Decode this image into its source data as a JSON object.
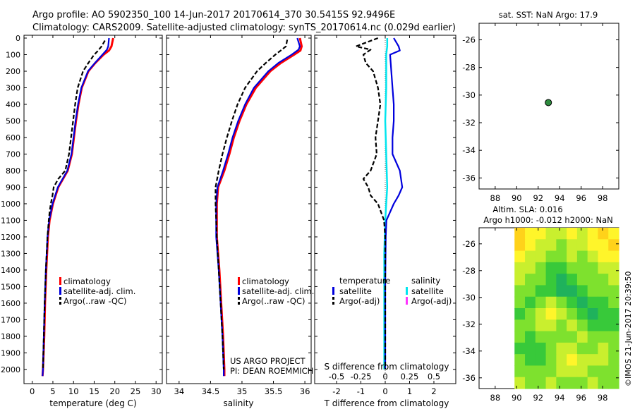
{
  "header": {
    "line1": "Argo profile: AO 5902350_100 14-Jun-2017 20170614_370 30.5415S 92.9496E",
    "line2": "Climatology: CARS2009. Satellite-adjusted climatology: synTS_20170614.nc (0.029d earlier)"
  },
  "colors": {
    "climatology": "#ff0000",
    "satellite": "#0000dd",
    "argo": "#000000",
    "salinity_satellite": "#00e5ee",
    "salinity_argo": "#ff33ff",
    "marker": "#2e8b3e"
  },
  "chart_data": [
    {
      "id": "temperature-profile",
      "type": "line",
      "xlabel": "temperature (deg C)",
      "ylabel": "",
      "xlim": [
        -2,
        31.5
      ],
      "ylim": [
        2060,
        0
      ],
      "xticks": [
        0,
        5,
        10,
        15,
        20,
        25,
        30
      ],
      "yticks": [
        0,
        100,
        200,
        300,
        400,
        500,
        600,
        700,
        800,
        900,
        1000,
        1100,
        1200,
        1300,
        1400,
        1500,
        1600,
        1700,
        1800,
        1900,
        2000
      ],
      "legend": [
        "climatology",
        "satellite-adj. clim.",
        "Argo(..raw -QC)"
      ],
      "legend_position": "lower-left",
      "series": [
        {
          "name": "climatology",
          "style": "solid",
          "depth": [
            0,
            50,
            75,
            100,
            150,
            200,
            300,
            400,
            500,
            600,
            700,
            800,
            900,
            1000,
            1100,
            1200,
            1400,
            1600,
            1800,
            2000,
            2040
          ],
          "values": [
            19.6,
            19.2,
            18.6,
            17.3,
            15.3,
            13.6,
            12.0,
            11.2,
            10.6,
            10.1,
            9.6,
            8.6,
            6.3,
            5.0,
            4.2,
            3.8,
            3.4,
            3.1,
            2.9,
            2.6,
            2.5
          ]
        },
        {
          "name": "satellite-adj. clim.",
          "style": "solid",
          "depth": [
            0,
            50,
            70,
            100,
            150,
            200,
            300,
            400,
            500,
            600,
            700,
            800,
            900,
            1000,
            1100,
            1200,
            1400,
            1600,
            1800,
            2000,
            2040
          ],
          "values": [
            18.6,
            18.4,
            18.1,
            17.0,
            15.2,
            13.5,
            11.9,
            11.1,
            10.5,
            10.0,
            9.5,
            8.5,
            6.2,
            4.9,
            4.1,
            3.7,
            3.3,
            3.0,
            2.8,
            2.6,
            2.5
          ]
        },
        {
          "name": "Argo(..raw -QC)",
          "style": "dashed",
          "depth": [
            15,
            50,
            80,
            100,
            150,
            200,
            300,
            400,
            500,
            600,
            700,
            800,
            850,
            900,
            950,
            1000,
            1050,
            1100,
            1200,
            1400,
            1600,
            1800,
            2000
          ],
          "values": [
            17.6,
            16.8,
            15.8,
            15.0,
            13.6,
            12.3,
            11.0,
            10.4,
            9.9,
            9.4,
            8.9,
            8.0,
            6.3,
            5.2,
            4.9,
            4.5,
            4.2,
            4.0,
            3.7,
            3.3,
            3.0,
            2.8,
            2.6
          ]
        }
      ]
    },
    {
      "id": "salinity-profile",
      "type": "line",
      "xlabel": "salinity",
      "xlim": [
        33.8,
        36.1
      ],
      "ylim": [
        2060,
        0
      ],
      "xticks": [
        34,
        34.5,
        35,
        35.5,
        36
      ],
      "xticklabels": [
        "34",
        "34.5",
        "35",
        "35.5",
        "36"
      ],
      "legend": [
        "climatology",
        "satellite-adj. clim.",
        "Argo(..raw -QC)"
      ],
      "legend_position": "lower-left",
      "annotation": [
        "US ARGO PROJECT",
        "PI: DEAN ROEMMICH"
      ],
      "series": [
        {
          "name": "climatology",
          "style": "solid",
          "depth": [
            0,
            50,
            75,
            100,
            150,
            200,
            300,
            400,
            500,
            600,
            700,
            800,
            900,
            1000,
            1200,
            1400,
            1600,
            1800,
            2000,
            2040
          ],
          "values": [
            35.92,
            35.95,
            35.93,
            35.83,
            35.62,
            35.45,
            35.22,
            35.07,
            34.96,
            34.87,
            34.8,
            34.72,
            34.62,
            34.6,
            34.6,
            34.64,
            34.67,
            34.7,
            34.72,
            34.72
          ]
        },
        {
          "name": "satellite-adj. clim.",
          "style": "solid",
          "depth": [
            0,
            50,
            70,
            100,
            150,
            200,
            300,
            400,
            500,
            600,
            700,
            800,
            900,
            1000,
            1200,
            1400,
            1600,
            1800,
            2000,
            2040
          ],
          "values": [
            35.88,
            35.92,
            35.9,
            35.79,
            35.58,
            35.42,
            35.19,
            35.05,
            34.94,
            34.85,
            34.78,
            34.7,
            34.61,
            34.59,
            34.59,
            34.63,
            34.66,
            34.69,
            34.71,
            34.71
          ]
        },
        {
          "name": "Argo(..raw -QC)",
          "style": "dashed",
          "depth": [
            10,
            50,
            80,
            100,
            150,
            200,
            300,
            400,
            500,
            600,
            700,
            800,
            900,
            1000,
            1200,
            1400,
            1600,
            1800,
            2000
          ],
          "values": [
            35.72,
            35.7,
            35.6,
            35.53,
            35.38,
            35.24,
            35.05,
            34.93,
            34.84,
            34.76,
            34.69,
            34.63,
            34.58,
            34.58,
            34.6,
            34.63,
            34.66,
            34.69,
            34.71
          ]
        }
      ]
    },
    {
      "id": "difference-profile",
      "type": "line",
      "xlabel": "T difference from climatology",
      "top_xlabel": "S difference from climatology",
      "xlim": [
        -2.9,
        2.9
      ],
      "ylim": [
        2060,
        0
      ],
      "xticks": [
        -2,
        -1,
        0,
        1,
        2
      ],
      "xticklabels": [
        "-2",
        "-1",
        "0",
        "1",
        "2"
      ],
      "top_xticks": [
        -0.5,
        -0.25,
        0,
        0.25,
        0.5
      ],
      "top_xticklabels": [
        "-0.5",
        "-0.25",
        "0",
        "0.25",
        "0.5"
      ],
      "legend_temperature": {
        "title": "temperature",
        "items": [
          "satellite",
          "Argo(-adj)"
        ]
      },
      "legend_salinity": {
        "title": "salinity",
        "items": [
          "satellite",
          "Argo(-adj)"
        ]
      },
      "series": [
        {
          "name": "temperature satellite",
          "style": "solid",
          "depth": [
            0,
            50,
            75,
            100,
            200,
            300,
            400,
            500,
            600,
            700,
            800,
            850,
            900,
            950,
            1000,
            1050,
            1100,
            1200,
            1500,
            2000
          ],
          "values": [
            0.35,
            0.55,
            0.6,
            0.2,
            0.25,
            0.3,
            0.35,
            0.35,
            0.3,
            0.3,
            0.6,
            0.65,
            0.7,
            0.55,
            0.35,
            0.2,
            0.05,
            0.02,
            0.0,
            0.0
          ]
        },
        {
          "name": "temperature Argo(-adj)",
          "style": "dashed",
          "depth": [
            0,
            50,
            70,
            100,
            150,
            200,
            300,
            400,
            500,
            600,
            700,
            800,
            850,
            900,
            950,
            1000,
            1100,
            1200,
            1500,
            2000
          ],
          "values": [
            -0.3,
            -1.2,
            -0.6,
            -0.9,
            -0.8,
            -0.5,
            -0.3,
            -0.2,
            -0.3,
            -0.4,
            -0.35,
            -0.6,
            -0.9,
            -0.7,
            -0.6,
            -0.3,
            -0.05,
            0.0,
            0.0,
            0.0
          ]
        },
        {
          "name": "salinity satellite",
          "style": "solid",
          "depth": [
            0,
            50,
            100,
            300,
            500,
            700,
            900,
            1100,
            1300,
            1600,
            2000
          ],
          "values": [
            0.02,
            0.02,
            0.01,
            0.01,
            0.0,
            0.01,
            0.02,
            0.0,
            -0.01,
            -0.01,
            -0.01
          ]
        },
        {
          "name": "salinity Argo(-adj)",
          "style": "solid",
          "depth": [],
          "values": []
        }
      ]
    },
    {
      "id": "position-map",
      "type": "scatter",
      "title": "sat. SST: NaN  Argo: 17.9",
      "xlim": [
        86.5,
        99.5
      ],
      "ylim": [
        -36.8,
        -24.8
      ],
      "xticks": [
        88,
        90,
        92,
        94,
        96,
        98
      ],
      "yticks": [
        -26,
        -28,
        -30,
        -32,
        -34,
        -36
      ],
      "points": [
        {
          "x": 92.9496,
          "y": -30.5415
        }
      ]
    },
    {
      "id": "altimetry-map",
      "type": "heatmap",
      "title_lines": [
        "Altim. SLA: 0.016",
        "Argo h1000: -0.012  h2000: NaN"
      ],
      "xlim": [
        86.5,
        99.5
      ],
      "ylim": [
        -36.8,
        -24.8
      ],
      "data_xlim": [
        89.8,
        99.5
      ],
      "xticks": [
        88,
        90,
        92,
        94,
        96,
        98
      ],
      "yticks": [
        -26,
        -28,
        -30,
        -32,
        -34,
        -36
      ],
      "colormap": [
        "#ffa41c",
        "#ffd21a",
        "#fff52a",
        "#c9ef2e",
        "#7ee12e",
        "#38c93a",
        "#1fb25c"
      ],
      "grid_cols": 10,
      "grid_rows": 14,
      "grid": [
        [
          1,
          2,
          2,
          3,
          3,
          2,
          3,
          2,
          1,
          2
        ],
        [
          1,
          2,
          3,
          3,
          4,
          3,
          3,
          2,
          2,
          1
        ],
        [
          2,
          3,
          3,
          4,
          4,
          3,
          4,
          3,
          2,
          2
        ],
        [
          3,
          3,
          4,
          5,
          5,
          4,
          4,
          4,
          3,
          3
        ],
        [
          3,
          4,
          4,
          5,
          6,
          5,
          4,
          4,
          4,
          3
        ],
        [
          4,
          4,
          5,
          5,
          6,
          6,
          5,
          4,
          4,
          4
        ],
        [
          4,
          5,
          4,
          3,
          4,
          5,
          6,
          5,
          5,
          4
        ],
        [
          5,
          4,
          3,
          2,
          3,
          4,
          5,
          6,
          5,
          5
        ],
        [
          4,
          4,
          3,
          3,
          4,
          3,
          4,
          5,
          5,
          5
        ],
        [
          4,
          5,
          4,
          4,
          4,
          4,
          3,
          4,
          4,
          4
        ],
        [
          5,
          5,
          5,
          4,
          3,
          3,
          4,
          4,
          3,
          4
        ],
        [
          4,
          5,
          5,
          4,
          3,
          2,
          3,
          3,
          3,
          4
        ],
        [
          4,
          4,
          4,
          4,
          3,
          3,
          3,
          4,
          4,
          4
        ],
        [
          3,
          4,
          4,
          3,
          4,
          4,
          4,
          3,
          4,
          4
        ]
      ]
    }
  ],
  "watermark": "©IMOS 21-Jun-2017 20:39:50"
}
